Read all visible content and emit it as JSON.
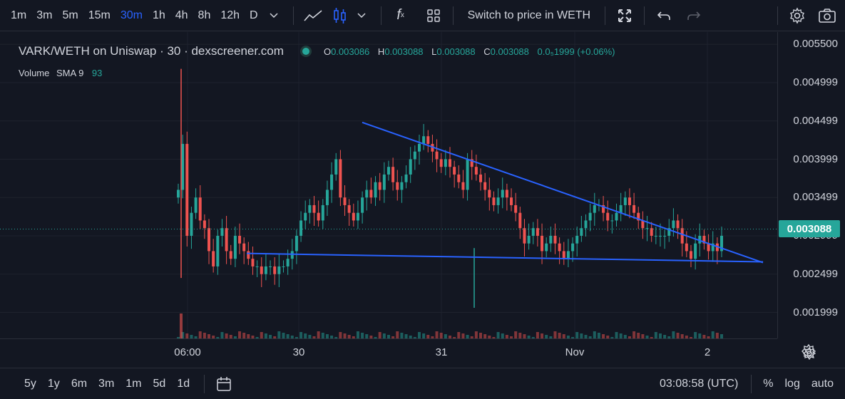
{
  "toolbar": {
    "timeframes": [
      "1m",
      "3m",
      "5m",
      "15m",
      "30m",
      "1h",
      "4h",
      "8h",
      "12h",
      "D"
    ],
    "active_timeframe": "30m",
    "switch_label": "Switch to price in WETH",
    "fx_label": "f"
  },
  "legend": {
    "symbol": "VARK/WETH on Uniswap · 30 · dexscreener.com",
    "o_label": "O",
    "o": "0.003086",
    "h_label": "H",
    "h": "0.003088",
    "l_label": "L",
    "l": "0.003088",
    "c_label": "C",
    "c": "0.003088",
    "change": "0.0₅1999 (+0.06%)",
    "volume_label": "Volume",
    "sma_label": "SMA 9",
    "volume_value": "93"
  },
  "price_axis": {
    "labels": [
      "0.005500",
      "0.004999",
      "0.004499",
      "0.003999",
      "0.003499",
      "0.002999",
      "0.002499",
      "0.001999"
    ],
    "current": "0.003088"
  },
  "time_axis": {
    "labels": [
      "06:00",
      "30",
      "31",
      "Nov",
      "2"
    ]
  },
  "bottombar": {
    "ranges": [
      "5y",
      "1y",
      "6m",
      "3m",
      "1m",
      "5d",
      "1d"
    ],
    "clock": "03:08:58 (UTC)",
    "pct": "%",
    "log": "log",
    "auto": "auto"
  },
  "colors": {
    "up": "#26a69a",
    "down": "#ef5350",
    "trendline": "#2962ff",
    "accent": "#2962ff"
  },
  "chart_data": {
    "type": "candlestick",
    "title": "VARK/WETH on Uniswap · 30 · dexscreener.com",
    "ylim": [
      0.00166,
      0.00566
    ],
    "y_ticks": [
      0.0055,
      0.004999,
      0.004499,
      0.003999,
      0.003499,
      0.002999,
      0.002499,
      0.001999
    ],
    "x_ticks": [
      "06:00",
      "30",
      "31",
      "Nov",
      "2"
    ],
    "last_price": 0.003088,
    "candles_close": [
      0.0036,
      0.0042,
      0.003,
      0.0033,
      0.0035,
      0.0032,
      0.0031,
      0.0028,
      0.0026,
      0.003,
      0.0031,
      0.0028,
      0.0027,
      0.003,
      0.0029,
      0.0028,
      0.0027,
      0.0026,
      0.0026,
      0.0025,
      0.0026,
      0.0026,
      0.0025,
      0.0026,
      0.0026,
      0.0027,
      0.0028,
      0.003,
      0.0032,
      0.0033,
      0.0034,
      0.0033,
      0.0032,
      0.0034,
      0.0036,
      0.0038,
      0.004,
      0.0035,
      0.0034,
      0.0033,
      0.0032,
      0.0033,
      0.0035,
      0.0036,
      0.0035,
      0.0037,
      0.0036,
      0.0038,
      0.0039,
      0.0037,
      0.0036,
      0.0037,
      0.0038,
      0.004,
      0.0041,
      0.0042,
      0.0043,
      0.0042,
      0.0041,
      0.004,
      0.0039,
      0.004,
      0.0039,
      0.0038,
      0.0037,
      0.0036,
      0.004,
      0.0039,
      0.0038,
      0.0037,
      0.0036,
      0.0035,
      0.0034,
      0.0035,
      0.0036,
      0.0035,
      0.0034,
      0.0033,
      0.0031,
      0.0029,
      0.003,
      0.0031,
      0.003,
      0.0028,
      0.0029,
      0.003,
      0.0029,
      0.0028,
      0.0027,
      0.0028,
      0.0029,
      0.003,
      0.0031,
      0.0032,
      0.0033,
      0.0034,
      0.0034,
      0.0033,
      0.0032,
      0.0032,
      0.0033,
      0.0034,
      0.0035,
      0.0034,
      0.0033,
      0.0032,
      0.0031,
      0.0031,
      0.003,
      0.003,
      0.003,
      0.003,
      0.0031,
      0.0032,
      0.0031,
      0.0029,
      0.0028,
      0.0027,
      0.0029,
      0.003,
      0.0029,
      0.0028,
      0.0029,
      0.0028,
      0.003
    ],
    "trendlines": [
      {
        "name": "resistance",
        "points": [
          [
            0,
            0.00448
          ],
          [
            1,
            0.00265
          ]
        ]
      },
      {
        "name": "support",
        "points": [
          [
            0,
            0.00277
          ],
          [
            1,
            0.00266
          ]
        ]
      }
    ]
  }
}
